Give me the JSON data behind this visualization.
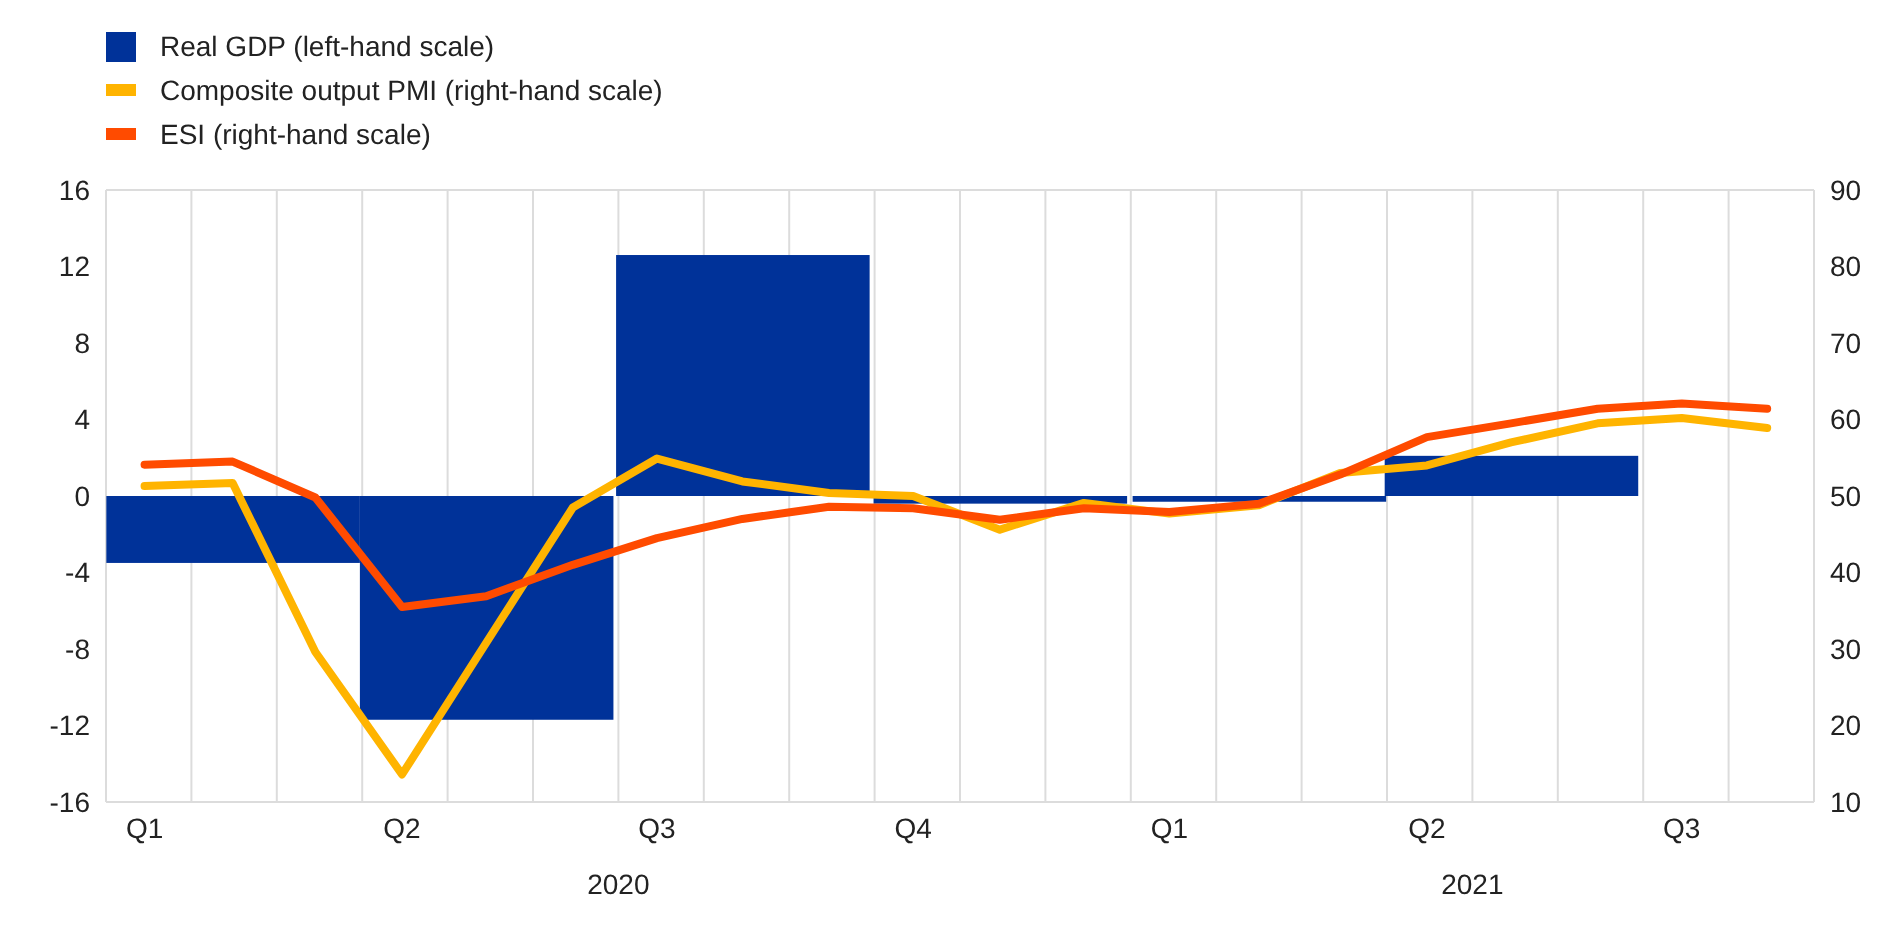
{
  "chart_data": {
    "type": "line",
    "xlim": [
      "2020-01-01",
      "2021-09-01"
    ],
    "xticks": [
      {
        "value": "2020-01-01",
        "label": null
      },
      {
        "value": "2020-02-01",
        "label": null
      },
      {
        "value": "2020-03-01",
        "label": null
      },
      {
        "value": "2020-04-01",
        "label": null
      },
      {
        "value": "2020-05-01",
        "label": null
      },
      {
        "value": "2020-06-01",
        "label": null
      },
      {
        "value": "2020-07-01",
        "label": null
      },
      {
        "value": "2020-08-01",
        "label": null
      },
      {
        "value": "2020-09-01",
        "label": null
      },
      {
        "value": "2020-10-01",
        "label": null
      },
      {
        "value": "2020-11-01",
        "label": null
      },
      {
        "value": "2020-12-01",
        "label": null
      },
      {
        "value": "2021-01-01",
        "label": null
      },
      {
        "value": "2021-02-01",
        "label": null
      },
      {
        "value": "2021-03-01",
        "label": null
      },
      {
        "value": "2021-04-01",
        "label": null
      },
      {
        "value": "2021-05-01",
        "label": null
      },
      {
        "value": "2021-06-01",
        "label": null
      },
      {
        "value": "2021-07-01",
        "label": null
      },
      {
        "value": "2021-08-01",
        "label": null
      },
      {
        "value": "2021-09-01",
        "label": null
      },
      {
        "value": "2020-01-15",
        "label": "Q1"
      },
      {
        "value": "2020-04-15",
        "label": "Q2"
      },
      {
        "value": "2020-07-15",
        "label": "Q3"
      },
      {
        "value": "2020-10-15",
        "label": "Q4"
      },
      {
        "value": "2021-01-15",
        "label": "Q1"
      },
      {
        "value": "2021-04-15",
        "label": "Q2"
      },
      {
        "value": "2021-07-15",
        "label": "Q3"
      }
    ],
    "ylim": [
      -16,
      16
    ],
    "yticks": [
      -16,
      -12,
      -8,
      -4,
      0,
      4,
      8,
      12,
      16
    ],
    "y2lim": [
      10,
      90
    ],
    "y2ticks": [
      10,
      20,
      30,
      40,
      50,
      60,
      70,
      80,
      90
    ],
    "grid": true,
    "legend": "top left",
    "line_style": "solid",
    "marker": "none",
    "annotations": [
      "2020",
      "2021"
    ],
    "series": [
      {
        "name": "Real GDP (left-hand scale)",
        "type": "bar",
        "color": "#003299",
        "x": [
          "2020-02-15",
          "2020-05-15",
          "2020-08-15",
          "2020-11-15",
          "2021-02-15",
          "2021-05-15"
        ],
        "values": [
          -3.5,
          -11.7,
          12.6,
          -0.4,
          -0.3,
          2.1
        ]
      },
      {
        "name": "Composite output PMI (right-hand scale)",
        "axis": "y2",
        "color": "#ffb400",
        "x": [
          "2020-01-15",
          "2020-02-15",
          "2020-03-15",
          "2020-04-15",
          "2020-05-15",
          "2020-06-15",
          "2020-07-15",
          "2020-08-15",
          "2020-09-15",
          "2020-10-15",
          "2020-11-15",
          "2020-12-15",
          "2021-01-15",
          "2021-02-15",
          "2021-03-15",
          "2021-04-15",
          "2021-05-15",
          "2021-06-15",
          "2021-07-15",
          "2021-08-15"
        ],
        "values": [
          51.3,
          51.7,
          29.6,
          13.6,
          30.8,
          48.5,
          54.9,
          51.9,
          50.4,
          50.0,
          45.6,
          49.1,
          47.7,
          48.8,
          53.0,
          54.0,
          57.0,
          59.5,
          60.2,
          58.9
        ]
      },
      {
        "name": "ESI (right-hand scale)",
        "axis": "y2",
        "color": "#ff4b00",
        "x": [
          "2020-01-15",
          "2020-02-15",
          "2020-03-15",
          "2020-04-15",
          "2020-05-15",
          "2020-06-15",
          "2020-07-15",
          "2020-08-15",
          "2020-09-15",
          "2020-10-15",
          "2020-11-15",
          "2020-12-15",
          "2021-01-15",
          "2021-02-15",
          "2021-03-15",
          "2021-04-15",
          "2021-05-15",
          "2021-06-15",
          "2021-07-15",
          "2021-08-15"
        ],
        "values": [
          54.1,
          54.5,
          49.8,
          35.5,
          36.9,
          41.0,
          44.5,
          47.0,
          48.6,
          48.4,
          46.9,
          48.4,
          47.9,
          49.0,
          52.8,
          57.7,
          59.5,
          61.4,
          62.1,
          61.4
        ]
      }
    ]
  }
}
